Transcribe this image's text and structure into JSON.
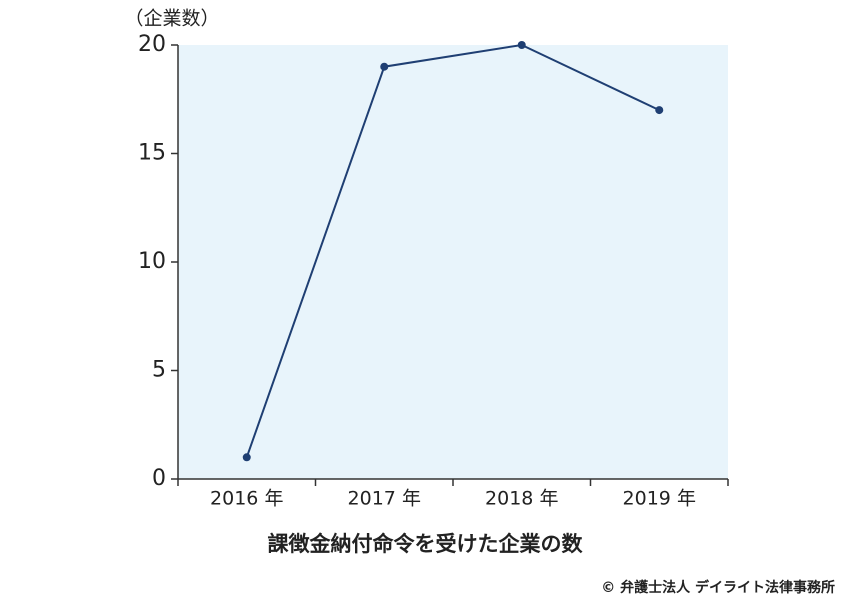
{
  "chart_data": {
    "type": "line",
    "title": "課徴金納付命令を受けた企業の数",
    "y_label": "（企業数）",
    "credit": "© 弁護士法人 デイライト法律事務所",
    "categories": [
      "2016 年",
      "2017 年",
      "2018 年",
      "2019 年"
    ],
    "values": [
      1,
      19,
      20,
      17
    ],
    "color": "#1f3f73",
    "background": "#e8f4fb",
    "ylim": [
      0,
      20
    ],
    "yticks": [
      0,
      5,
      10,
      15,
      20
    ]
  }
}
